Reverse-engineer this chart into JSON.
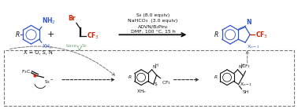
{
  "figsize": [
    3.78,
    1.39
  ],
  "dpi": 100,
  "bg_color": "#ffffff",
  "reaction_conditions": [
    "S₈ (8.0 equiv)",
    "NaHCO₃  (3.0 equiv)",
    "ADVN/B₂Pin₂",
    "DMF, 100 °C, 15 h"
  ],
  "blue": "#3355cc",
  "red": "#cc2200",
  "green_gray": "#7aaa7a",
  "dark": "#111111",
  "gray": "#999999",
  "mid_gray": "#777777"
}
